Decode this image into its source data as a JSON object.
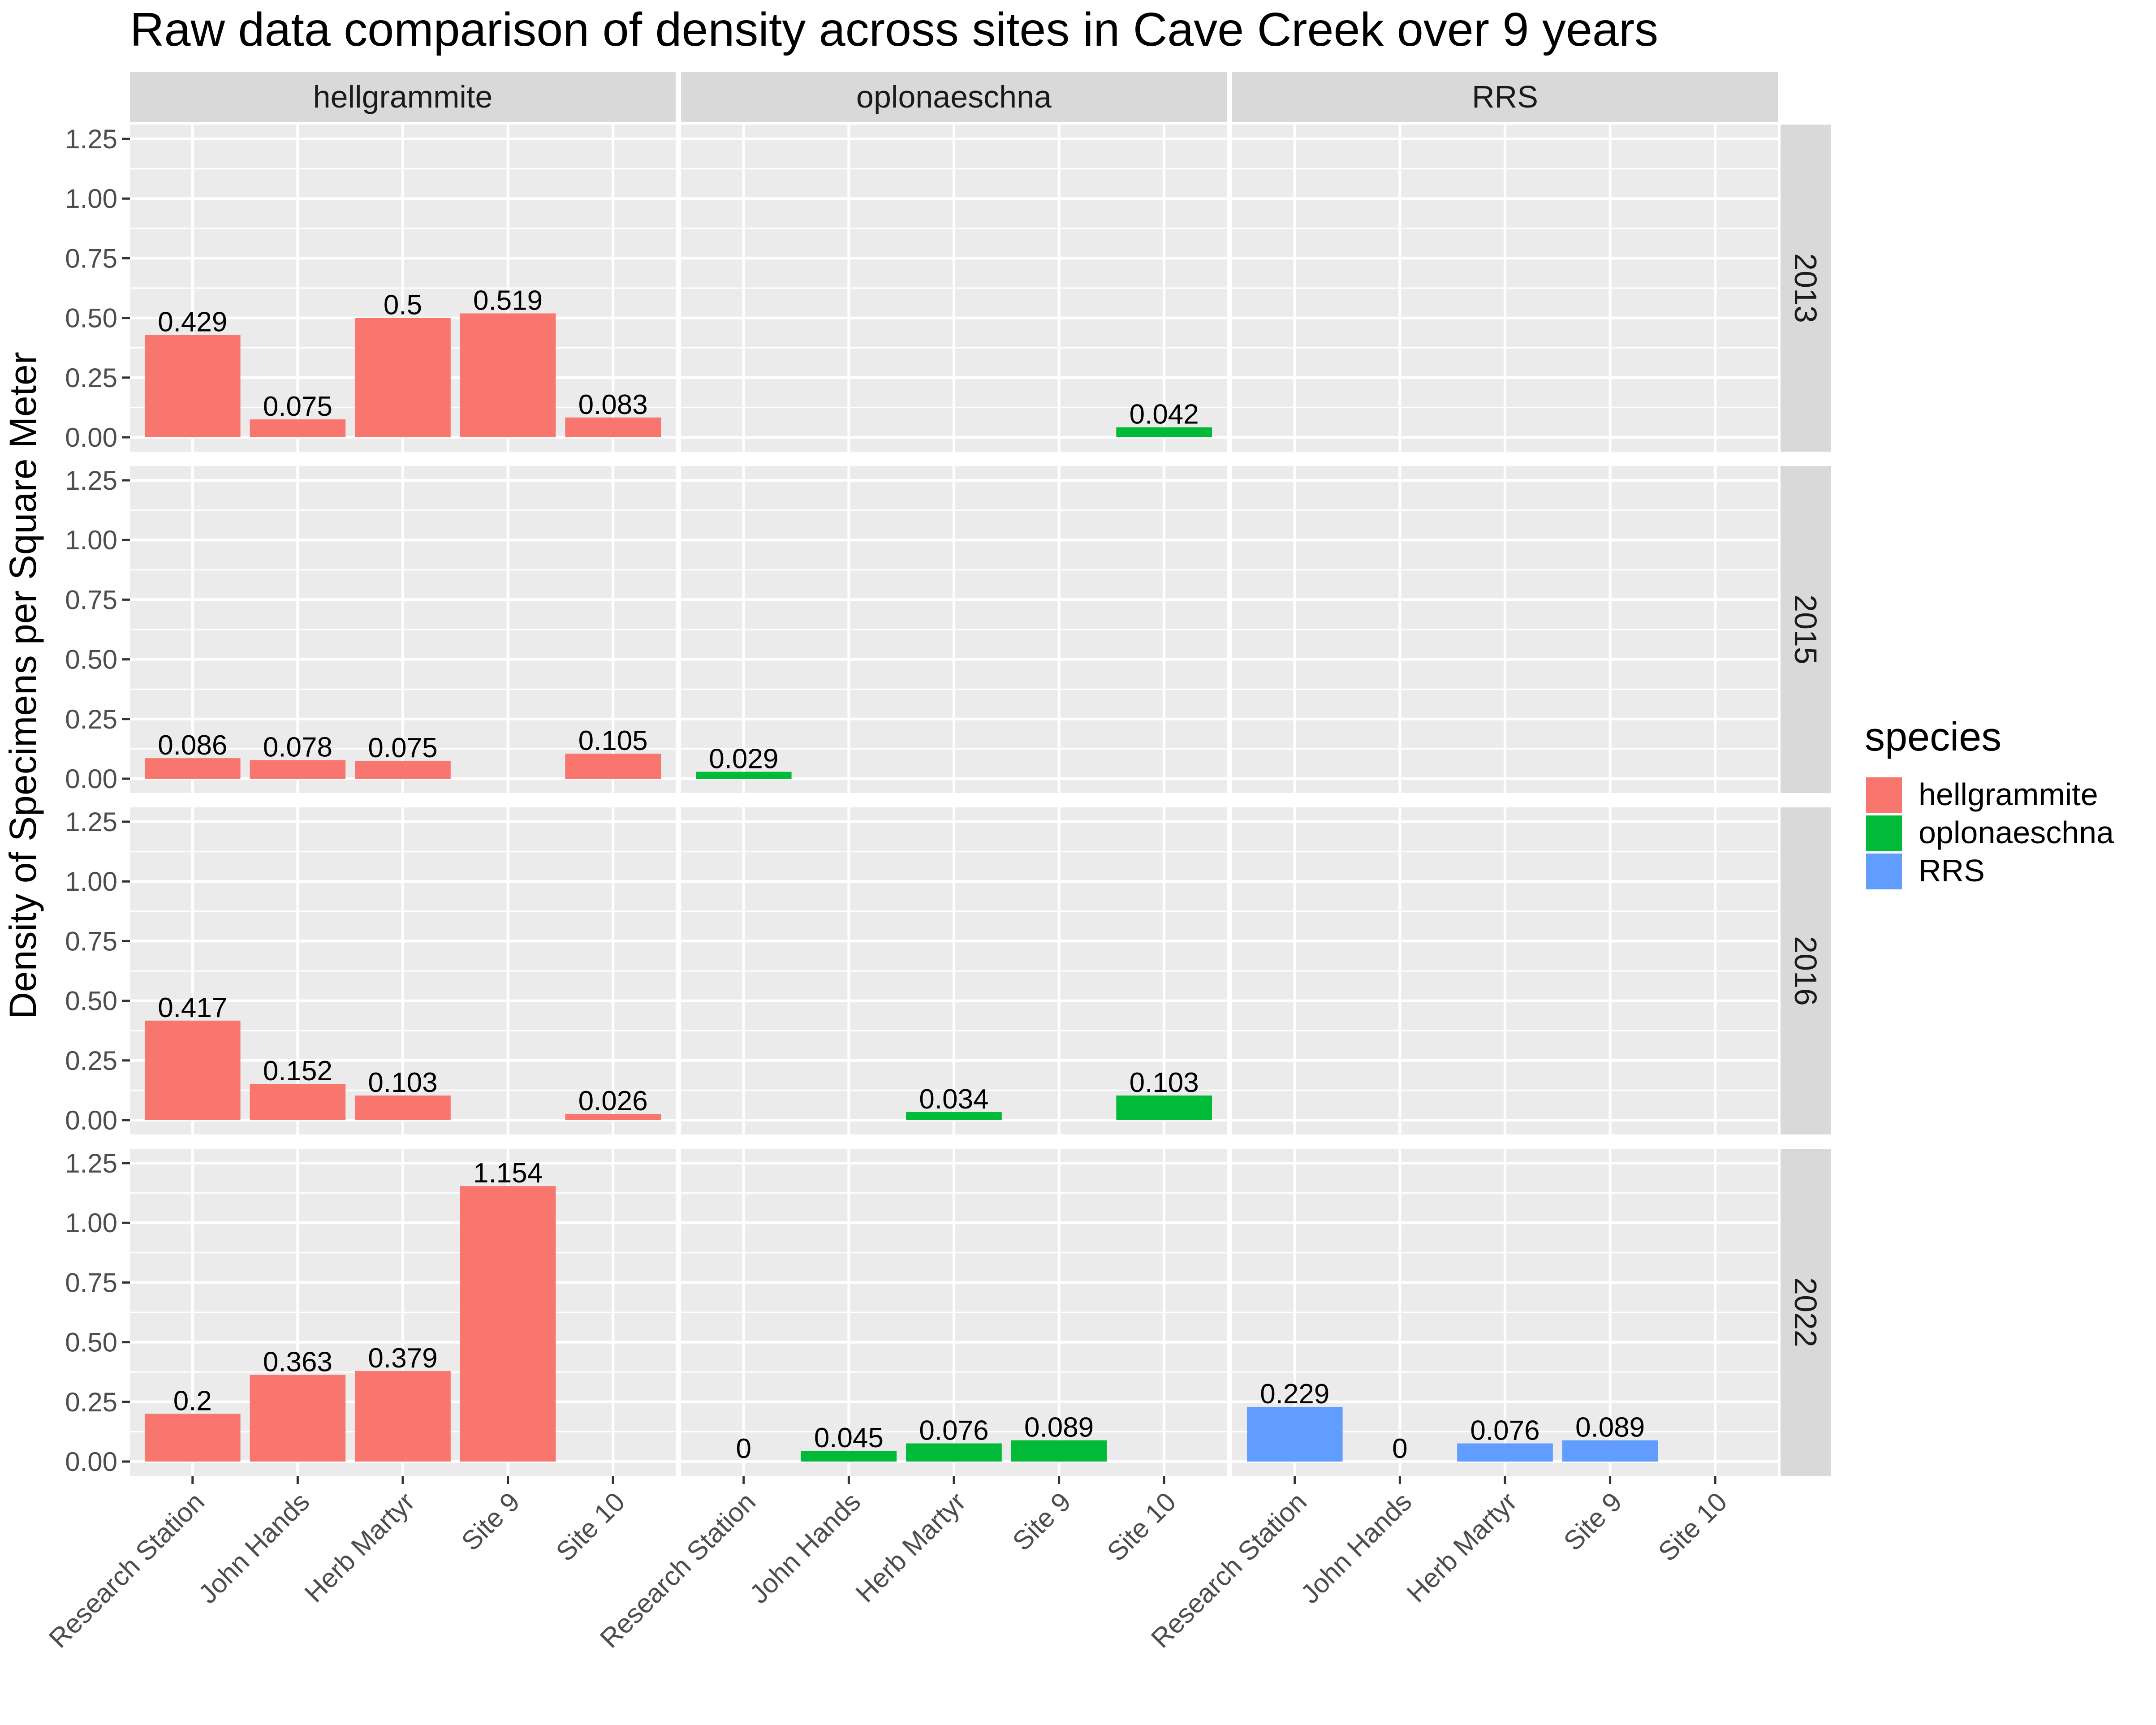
{
  "chart_data": {
    "type": "bar",
    "title": "Raw data comparison of density across sites in Cave Creek over 9 years",
    "xlabel": "",
    "ylabel": "Density of Specimens per Square Meter",
    "ylim": [
      0,
      1.25
    ],
    "y_ticks": [
      "0.00",
      "0.25",
      "0.50",
      "0.75",
      "1.00",
      "1.25"
    ],
    "categories": [
      "Research Station",
      "John Hands",
      "Herb Martyr",
      "Site 9",
      "Site 10"
    ],
    "facet_columns": [
      "hellgrammite",
      "oplonaeschna",
      "RRS"
    ],
    "facet_rows": [
      "2013",
      "2015",
      "2016",
      "2022"
    ],
    "grid": true,
    "legend": {
      "title": "species",
      "position": "right",
      "entries": [
        {
          "name": "hellgrammite",
          "color": "#F8766D"
        },
        {
          "name": "oplonaeschna",
          "color": "#00BA38"
        },
        {
          "name": "RRS",
          "color": "#619CFF"
        }
      ]
    },
    "panels": [
      {
        "species": "hellgrammite",
        "year": "2013",
        "values": [
          0.429,
          0.075,
          0.5,
          0.519,
          0.083
        ],
        "labels": [
          "0.429",
          "0.075",
          "0.5",
          "0.519",
          "0.083"
        ]
      },
      {
        "species": "oplonaeschna",
        "year": "2013",
        "values": [
          null,
          null,
          null,
          null,
          0.042
        ],
        "labels": [
          null,
          null,
          null,
          null,
          "0.042"
        ]
      },
      {
        "species": "RRS",
        "year": "2013",
        "values": [
          null,
          null,
          null,
          null,
          null
        ],
        "labels": [
          null,
          null,
          null,
          null,
          null
        ]
      },
      {
        "species": "hellgrammite",
        "year": "2015",
        "values": [
          0.086,
          0.078,
          0.075,
          null,
          0.105
        ],
        "labels": [
          "0.086",
          "0.078",
          "0.075",
          null,
          "0.105"
        ]
      },
      {
        "species": "oplonaeschna",
        "year": "2015",
        "values": [
          0.029,
          null,
          null,
          null,
          null
        ],
        "labels": [
          "0.029",
          null,
          null,
          null,
          null
        ]
      },
      {
        "species": "RRS",
        "year": "2015",
        "values": [
          null,
          null,
          null,
          null,
          null
        ],
        "labels": [
          null,
          null,
          null,
          null,
          null
        ]
      },
      {
        "species": "hellgrammite",
        "year": "2016",
        "values": [
          0.417,
          0.152,
          0.103,
          null,
          0.026
        ],
        "labels": [
          "0.417",
          "0.152",
          "0.103",
          null,
          "0.026"
        ]
      },
      {
        "species": "oplonaeschna",
        "year": "2016",
        "values": [
          null,
          null,
          0.034,
          null,
          0.103
        ],
        "labels": [
          null,
          null,
          "0.034",
          null,
          "0.103"
        ]
      },
      {
        "species": "RRS",
        "year": "2016",
        "values": [
          null,
          null,
          null,
          null,
          null
        ],
        "labels": [
          null,
          null,
          null,
          null,
          null
        ]
      },
      {
        "species": "hellgrammite",
        "year": "2022",
        "values": [
          0.2,
          0.363,
          0.379,
          1.154,
          null
        ],
        "labels": [
          "0.2",
          "0.363",
          "0.379",
          "1.154",
          null
        ]
      },
      {
        "species": "oplonaeschna",
        "year": "2022",
        "values": [
          0,
          0.045,
          0.076,
          0.089,
          null
        ],
        "labels": [
          "0",
          "0.045",
          "0.076",
          "0.089",
          null
        ]
      },
      {
        "species": "RRS",
        "year": "2022",
        "values": [
          0.229,
          0,
          0.076,
          0.089,
          null
        ],
        "labels": [
          "0.229",
          "0",
          "0.076",
          "0.089",
          null
        ]
      }
    ]
  }
}
